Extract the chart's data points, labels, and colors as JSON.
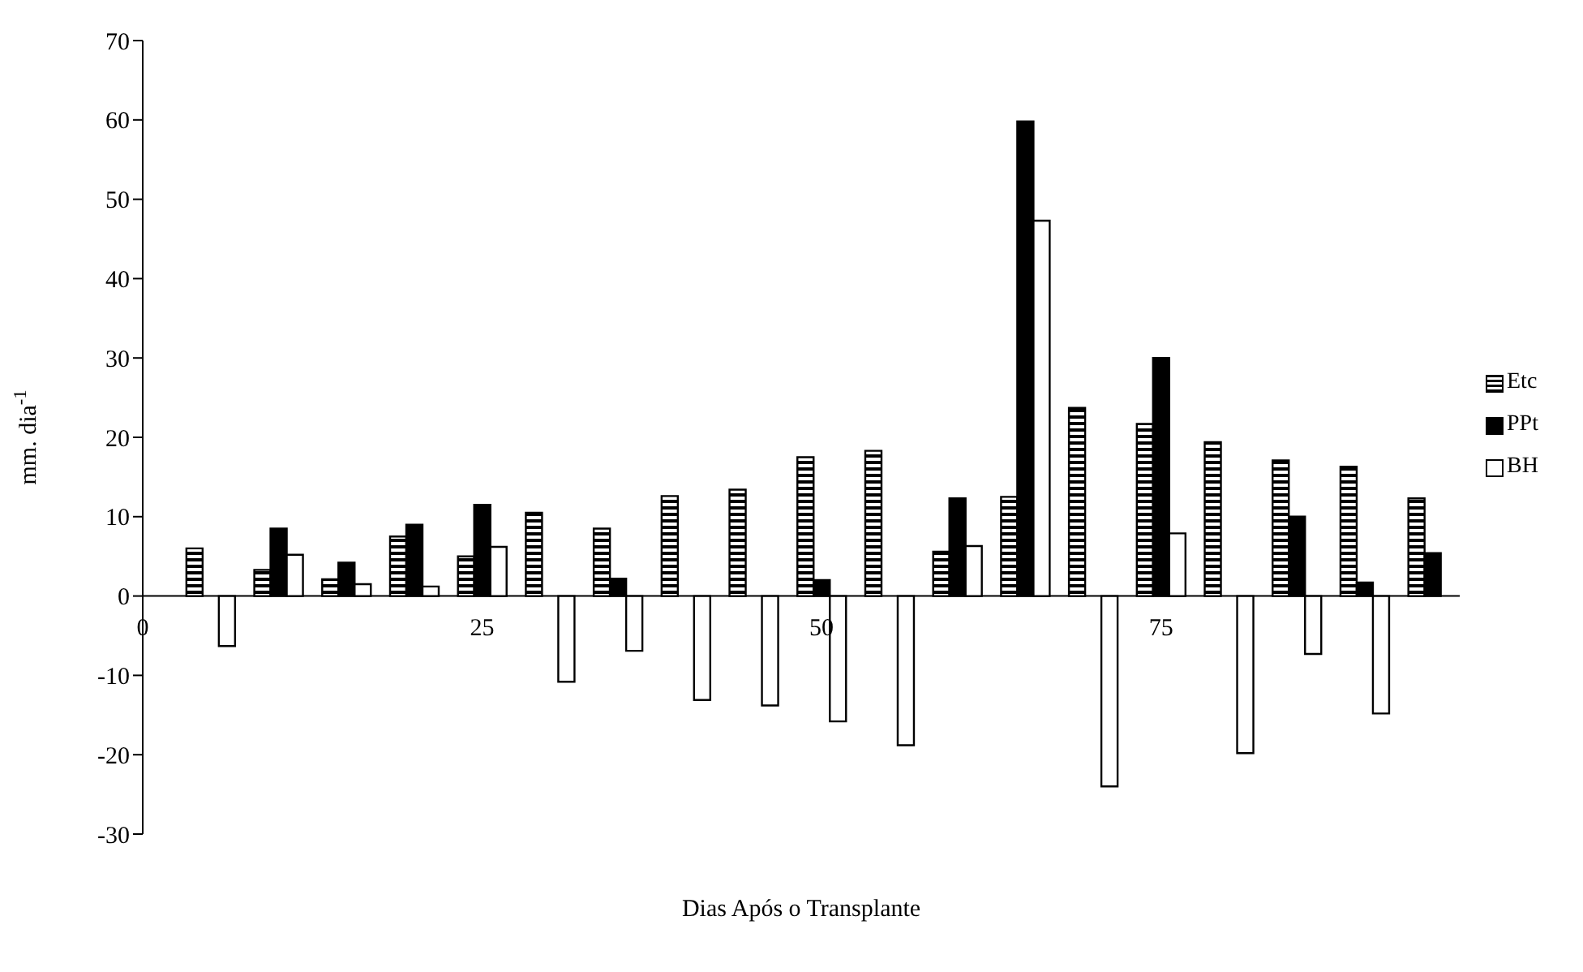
{
  "chart_data": {
    "type": "bar",
    "xlabel": "Dias Após o Transplante",
    "ylabel": "mm. dia$^{-1}$",
    "x": [
      5,
      10,
      15,
      20,
      25,
      30,
      35,
      40,
      45,
      50,
      55,
      60,
      65,
      70,
      75,
      80,
      85,
      90,
      95
    ],
    "series": [
      {
        "name": "Etc",
        "color": "#000000",
        "values": [
          6.0,
          3.3,
          2.1,
          7.5,
          5.0,
          10.5,
          8.5,
          12.6,
          13.4,
          17.5,
          18.3,
          5.6,
          12.5,
          23.7,
          21.7,
          19.4,
          17.1,
          16.3,
          12.3
        ]
      },
      {
        "name": "PPt",
        "color": "#000000",
        "values": [
          null,
          8.5,
          4.2,
          9.0,
          11.5,
          null,
          2.2,
          null,
          null,
          2.0,
          null,
          12.3,
          59.8,
          null,
          30.0,
          null,
          10.0,
          1.7,
          5.4
        ]
      },
      {
        "name": "BH",
        "color": "#ffffff",
        "values": [
          -6.3,
          5.2,
          1.5,
          1.2,
          6.2,
          -10.8,
          -6.9,
          -13.1,
          -13.8,
          -15.8,
          -18.8,
          6.3,
          47.3,
          -24.0,
          7.9,
          -19.8,
          -7.3,
          -14.8,
          null
        ]
      }
    ],
    "xlim": [
      0,
      97
    ],
    "xticks": [
      0,
      25,
      50,
      75
    ],
    "ylim": [
      -30,
      70
    ],
    "yticks": [
      -30,
      -20,
      -10,
      0,
      10,
      20,
      30,
      40,
      50,
      60,
      70
    ],
    "grid": false,
    "legend": "right"
  }
}
